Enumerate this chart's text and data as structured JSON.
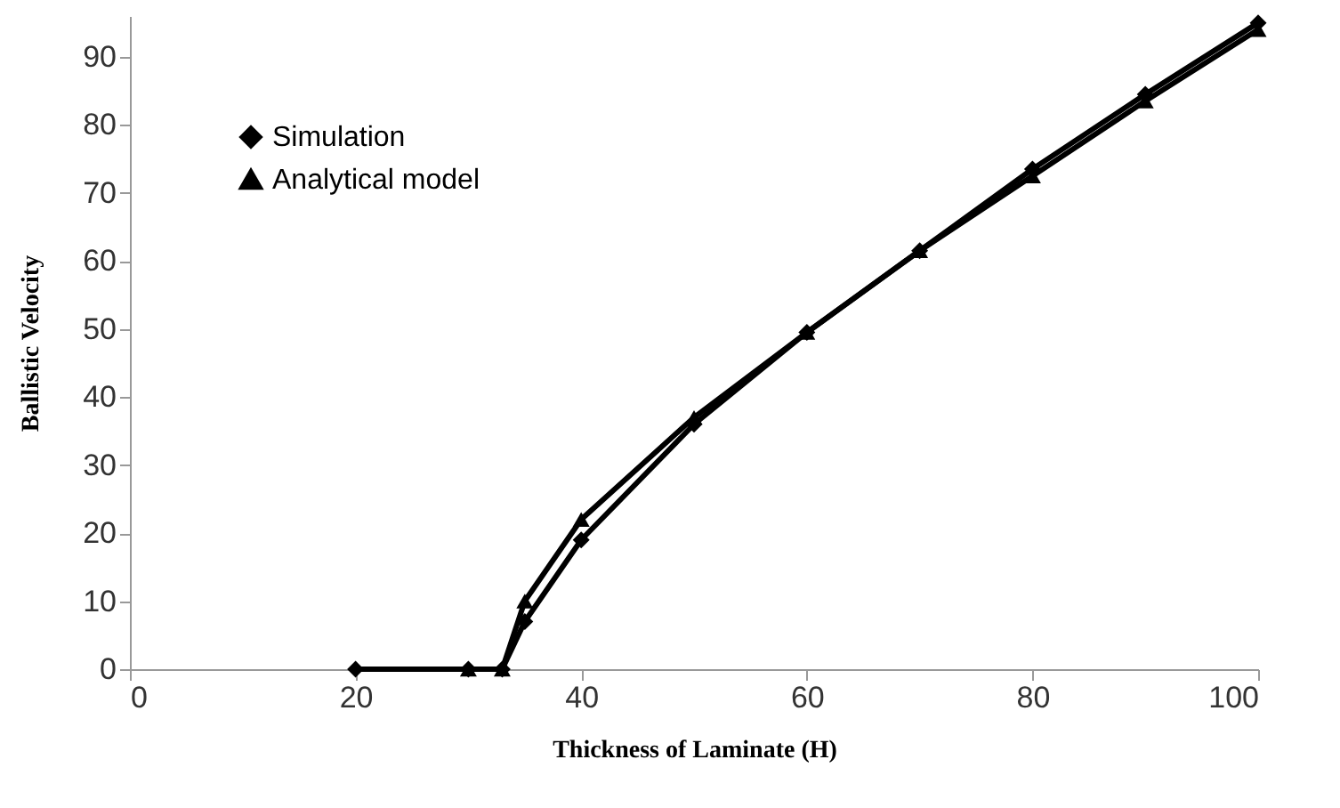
{
  "chart_data": {
    "type": "line",
    "xlabel": "Thickness of Laminate   (H)",
    "ylabel": "Ballistic Velocity",
    "xlim": [
      0,
      100
    ],
    "ylim": [
      0,
      96
    ],
    "xticks": [
      0,
      20,
      40,
      60,
      80,
      100
    ],
    "yticks": [
      0,
      10,
      20,
      30,
      40,
      50,
      60,
      70,
      80,
      90
    ],
    "grid": false,
    "legend": "top left",
    "series": [
      {
        "name": "Simulation",
        "color": "#000000",
        "marker": "diamond",
        "x": [
          20,
          30,
          33,
          35,
          40,
          50,
          60,
          70,
          80,
          90,
          100
        ],
        "values": [
          0,
          0,
          0,
          7,
          19,
          36,
          49.5,
          61.5,
          73.5,
          84.5,
          95
        ]
      },
      {
        "name": "Analytical model",
        "color": "#000000",
        "marker": "triangle",
        "x": [
          30,
          33,
          35,
          40,
          50,
          60,
          70,
          80,
          90,
          100
        ],
        "values": [
          0,
          0,
          10,
          22,
          37,
          49.5,
          61.5,
          72.5,
          83.5,
          94
        ]
      }
    ]
  }
}
